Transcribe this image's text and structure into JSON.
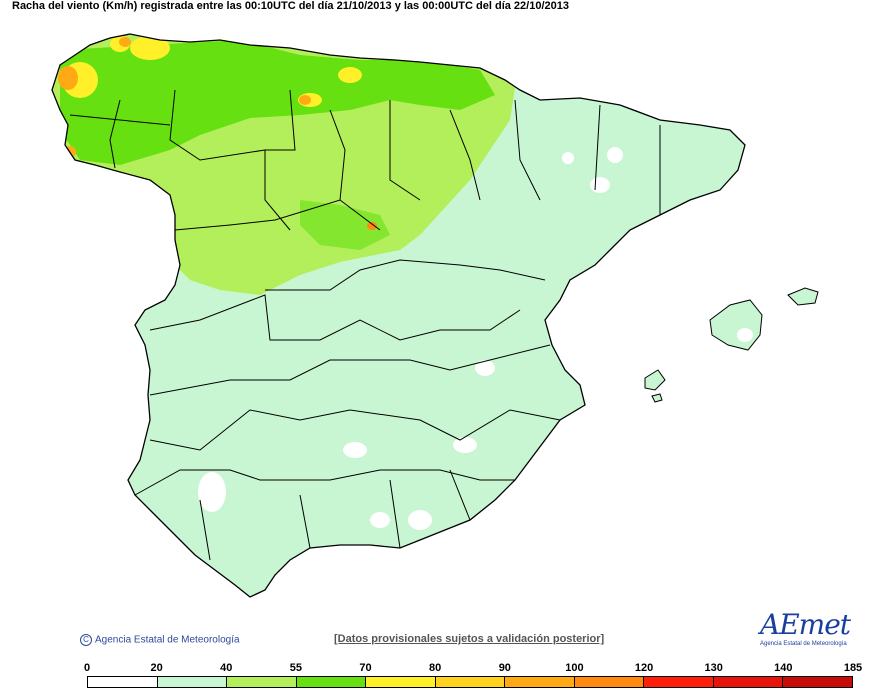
{
  "title": "Racha del viento (Km/h) registrada entre las 00:10UTC del día 21/10/2013 y las 00:00UTC del día 22/10/2013",
  "copyright": "Agencia Estatal de Meteorología",
  "copyright_symbol": "C",
  "disclaimer": "[Datos provisionales sujetos a validación posterior]",
  "logo": {
    "main": "AEmet",
    "sub": "Agencia Estatal de Meteorología"
  },
  "legend": {
    "labels": [
      "0",
      "20",
      "40",
      "55",
      "70",
      "80",
      "90",
      "100",
      "120",
      "130",
      "140",
      "185"
    ],
    "colors": [
      "#ffffff",
      "#c8f5d2",
      "#b2ef5a",
      "#66e010",
      "#fff02a",
      "#ffd21e",
      "#ffaa14",
      "#ff8a10",
      "#ff1e0a",
      "#e6140a",
      "#c80c0a",
      "#9c0a0a"
    ]
  },
  "map_colors": {
    "base": "#c8f5d2",
    "light_green": "#b2ef5a",
    "green": "#66e010",
    "yellow": "#fff02a",
    "orange": "#ffaa14",
    "white": "#ffffff",
    "border": "#000000"
  }
}
